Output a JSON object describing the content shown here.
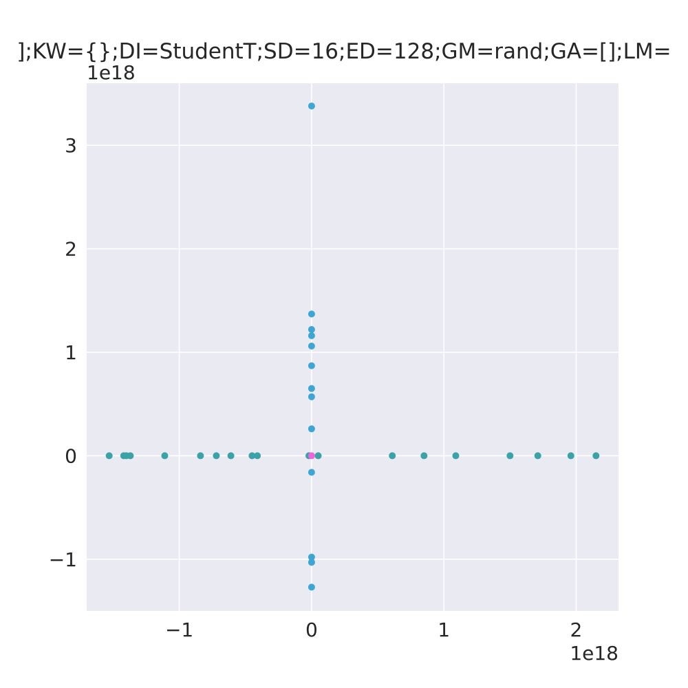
{
  "chart_data": {
    "type": "scatter",
    "title": "];KW={};DI=StudentT;SD=16;ED=128;GM=rand;GA=[];LM=",
    "xlabel": "",
    "ylabel": "",
    "x_offset_label": "1e18",
    "y_offset_label": "1e18",
    "xlim": [
      -1.7,
      2.32
    ],
    "ylim": [
      -1.5,
      3.6
    ],
    "xticks": [
      -1,
      0,
      1,
      2
    ],
    "yticks": [
      -1,
      0,
      1,
      2,
      3
    ],
    "xtick_labels": [
      "−1",
      "0",
      "1",
      "2"
    ],
    "ytick_labels": [
      "−1",
      "0",
      "1",
      "2",
      "3"
    ],
    "grid": true,
    "background": "#eaeaf2",
    "series": [
      {
        "color": "#3ba3a8",
        "points": [
          [
            -1.53,
            0
          ],
          [
            -1.42,
            0
          ],
          [
            -1.4,
            0
          ],
          [
            -1.37,
            0
          ],
          [
            -1.11,
            0
          ],
          [
            -0.84,
            0
          ],
          [
            -0.72,
            0
          ],
          [
            -0.61,
            0
          ],
          [
            -0.45,
            0
          ],
          [
            -0.41,
            0
          ],
          [
            -0.02,
            0
          ],
          [
            0.05,
            0
          ],
          [
            0.61,
            0
          ],
          [
            0.85,
            0
          ],
          [
            1.09,
            0
          ],
          [
            1.5,
            0
          ],
          [
            1.71,
            0
          ],
          [
            1.96,
            0
          ],
          [
            2.15,
            0
          ]
        ]
      },
      {
        "color": "#3fa6d3",
        "points": [
          [
            0,
            3.38
          ],
          [
            0,
            1.37
          ],
          [
            0,
            1.22
          ],
          [
            0,
            1.16
          ],
          [
            0,
            1.06
          ],
          [
            0,
            0.87
          ],
          [
            0,
            0.65
          ],
          [
            0,
            0.57
          ],
          [
            0,
            0.26
          ],
          [
            0,
            -0.16
          ],
          [
            0,
            -0.98
          ],
          [
            0,
            -1.03
          ],
          [
            0,
            -1.27
          ]
        ]
      },
      {
        "color": "#ee66dd",
        "points": [
          [
            0,
            0
          ]
        ]
      }
    ]
  }
}
